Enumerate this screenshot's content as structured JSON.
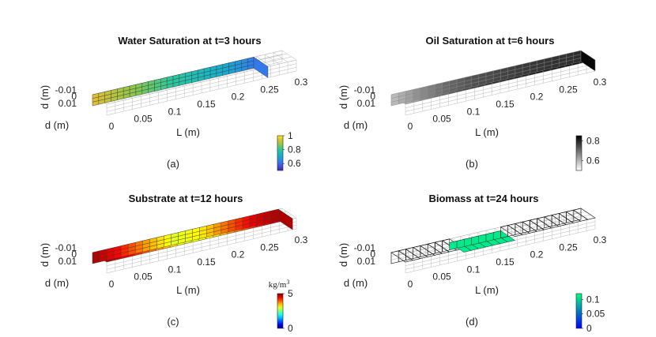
{
  "chart_data": [
    {
      "type": "heatmap",
      "title": "Water Saturation at t=3 hours",
      "caption": "(a)",
      "xlabel": "L (m)",
      "ylabel": "d (m)",
      "zlabel": "d (m)",
      "xticks": [
        "0",
        "0.05",
        "0.1",
        "0.15",
        "0.2",
        "0.25",
        "0.3"
      ],
      "yticks": [
        "-0.01",
        "0",
        "0.01"
      ],
      "colormap": "parula",
      "colorbar_ticks": [
        "1",
        "0.8",
        "0.6"
      ],
      "colorbar_range": [
        0.5,
        1
      ],
      "field_profile": [
        0.95,
        0.9,
        0.85,
        0.8,
        0.75,
        0.7,
        0.62,
        0.55
      ],
      "filled_fraction": 0.85,
      "colors": {
        "frame": "#b9b9b9",
        "cell_edge": "#3a3a3a"
      }
    },
    {
      "type": "heatmap",
      "title": "Oil Saturation at t=6 hours",
      "caption": "(b)",
      "xlabel": "L (m)",
      "ylabel": "d (m)",
      "zlabel": "d (m)",
      "xticks": [
        "0",
        "0.05",
        "0.1",
        "0.15",
        "0.2",
        "0.25",
        "0.3"
      ],
      "yticks": [
        "-0.01",
        "0",
        "0.01"
      ],
      "colormap": "gray",
      "colorbar_ticks": [
        "0.8",
        "0.6"
      ],
      "colorbar_range": [
        0.5,
        0.85
      ],
      "field_profile": [
        0.6,
        0.68,
        0.74,
        0.78,
        0.8,
        0.82,
        0.83,
        0.84
      ],
      "filled_fraction": 1.0,
      "colors": {
        "frame": "#b9b9b9",
        "cell_edge": "#8a8a8a"
      }
    },
    {
      "type": "heatmap",
      "title": "Substrate at t=12 hours",
      "caption": "(c)",
      "xlabel": "L (m)",
      "ylabel": "d (m)",
      "zlabel": "d (m)",
      "xticks": [
        "0",
        "0.05",
        "0.1",
        "0.15",
        "0.2",
        "0.25",
        "0.3"
      ],
      "yticks": [
        "-0.01",
        "0",
        "0.01"
      ],
      "colormap": "jet",
      "colorbar_ticks": [
        "5",
        "0"
      ],
      "colorbar_range": [
        0,
        5
      ],
      "colorbar_unit_html": "kg/m<sup>3</sup>",
      "field_profile": [
        4.8,
        4.3,
        3.6,
        3.0,
        3.2,
        3.9,
        4.5,
        4.8
      ],
      "filled_fraction": 0.98,
      "colors": {
        "frame": "#b9b9b9",
        "cell_edge": "#3a3a3a"
      }
    },
    {
      "type": "heatmap",
      "title": "Biomass at t=24 hours",
      "caption": "(d)",
      "xlabel": "L (m)",
      "ylabel": "d (m)",
      "zlabel": "d (m)",
      "xticks": [
        "0",
        "0.05",
        "0.1",
        "0.15",
        "0.2",
        "0.25",
        "0.3"
      ],
      "yticks": [
        "-0.01",
        "0",
        "0.01"
      ],
      "colormap": "winter",
      "colorbar_ticks": [
        "0.1",
        "0.05",
        "0"
      ],
      "colorbar_range": [
        0,
        0.12
      ],
      "field_profile": [
        0.11,
        0.11,
        0.11,
        0.11,
        0.11,
        0.11
      ],
      "patch_range": [
        0.3,
        0.58
      ],
      "filled_fraction": 1.0,
      "colors": {
        "frame": "#b9b9b9",
        "cell_edge": "#111111"
      }
    }
  ]
}
